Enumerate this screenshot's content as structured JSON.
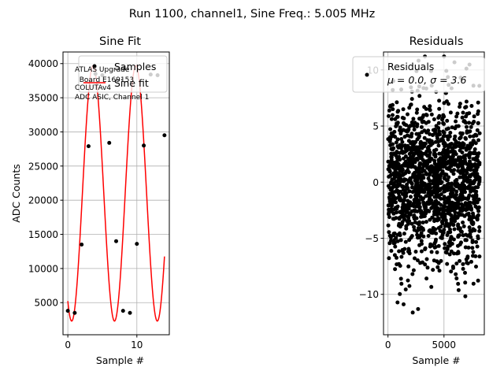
{
  "suptitle": "Run 1100, channel1, Sine Freq.: 5.005 MHz",
  "chart_data": [
    {
      "type": "scatter",
      "title": "Sine Fit",
      "xlabel": "Sample #",
      "ylabel": "ADC Counts",
      "xlim": [
        -0.7,
        14.7
      ],
      "ylim": [
        300,
        41700
      ],
      "xticks": [
        0,
        10
      ],
      "yticks": [
        5000,
        10000,
        15000,
        20000,
        25000,
        30000,
        35000,
        40000
      ],
      "grid": true,
      "legend_position": "top-right",
      "annotation": [
        "ATLAS Upgrade",
        "  Board E169153",
        "COLUTAv4",
        "ADC ASIC, Channel 1"
      ],
      "series": [
        {
          "name": "Samples",
          "mode": "markers",
          "color": "#000000",
          "x": [
            0,
            1,
            2,
            3,
            4,
            5,
            6,
            7,
            8,
            9,
            10,
            11,
            12,
            13,
            14
          ],
          "y": [
            3800,
            3500,
            13500,
            27900,
            38500,
            38300,
            28400,
            14000,
            3800,
            3500,
            13600,
            28000,
            38400,
            38300,
            29500
          ]
        },
        {
          "name": "Sine fit",
          "mode": "line",
          "color": "#ff0000",
          "function": {
            "offset": 21000,
            "amplitude": 18700,
            "period": 6.2,
            "phase_x": 0.56,
            "x_range": [
              0,
              14
            ]
          }
        }
      ]
    },
    {
      "type": "scatter",
      "title": "Residuals",
      "xlabel": "Sample #",
      "ylabel": "",
      "xlim": [
        -400,
        8600
      ],
      "ylim": [
        -13.6,
        11.6
      ],
      "xticks": [
        0,
        5000
      ],
      "yticks": [
        -10,
        -5,
        0,
        5,
        10
      ],
      "grid": true,
      "legend_position": "top-right",
      "series": [
        {
          "name": "Residuals\nμ = 0.0, σ = 3.6",
          "color": "#000000",
          "count": 8192,
          "mean": 0.0,
          "sigma": 3.6,
          "x_range": [
            0,
            8191
          ],
          "y_range": [
            -12.4,
            11.2
          ]
        }
      ]
    }
  ],
  "residuals_legend": {
    "line1": "Residuals",
    "line2": "μ = 0.0, σ = 3.6"
  },
  "legend_left": {
    "samples": "Samples",
    "fit": "Sine fit"
  }
}
